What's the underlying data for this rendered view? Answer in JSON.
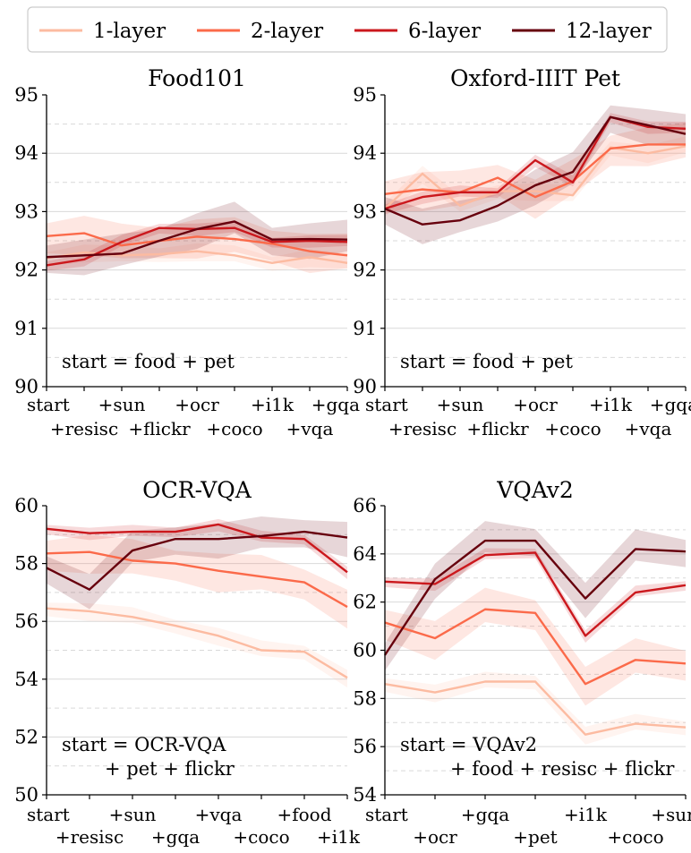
{
  "colors": {
    "series": [
      "#fcbba1",
      "#fb6a4a",
      "#cb181d",
      "#67000d"
    ],
    "grid": "#d9d9d9"
  },
  "legend": {
    "entries": [
      "1-layer",
      "2-layer",
      "6-layer",
      "12-layer"
    ],
    "placement": "top-center"
  },
  "chart_data": [
    {
      "type": "line",
      "title": "Food101",
      "ylim": [
        90,
        95
      ],
      "yticks": [
        "90",
        "91",
        "92",
        "93",
        "94",
        "95"
      ],
      "categories": [
        "start",
        "+resisc",
        "+sun",
        "+flickr",
        "+ocr",
        "+coco",
        "+i1k",
        "+vqa",
        "+gqa"
      ],
      "annotation": [
        "start = food + pet"
      ],
      "series": [
        {
          "name": "1-layer",
          "values": [
            92.2,
            92.3,
            92.25,
            92.27,
            92.32,
            92.25,
            92.12,
            92.22,
            92.12
          ]
        },
        {
          "name": "2-layer",
          "values": [
            92.58,
            92.63,
            92.42,
            92.5,
            92.57,
            92.53,
            92.45,
            92.32,
            92.25
          ]
        },
        {
          "name": "6-layer",
          "values": [
            92.08,
            92.18,
            92.48,
            92.72,
            92.7,
            92.72,
            92.48,
            92.5,
            92.48
          ]
        },
        {
          "name": "12-layer",
          "values": [
            92.22,
            92.25,
            92.28,
            92.5,
            92.7,
            92.83,
            92.52,
            92.53,
            92.52
          ]
        }
      ]
    },
    {
      "type": "line",
      "title": "Oxford-IIIT Pet",
      "ylim": [
        90,
        95
      ],
      "yticks": [
        "90",
        "91",
        "92",
        "93",
        "94",
        "95"
      ],
      "categories": [
        "start",
        "+resisc",
        "+sun",
        "+flickr",
        "+ocr",
        "+coco",
        "+i1k",
        "+vqa",
        "+gqa"
      ],
      "annotation": [
        "start = food + pet"
      ],
      "series": [
        {
          "name": "1-layer",
          "values": [
            93.05,
            93.65,
            93.1,
            93.35,
            93.35,
            93.28,
            94.1,
            94.0,
            94.12
          ]
        },
        {
          "name": "2-layer",
          "values": [
            93.3,
            93.38,
            93.33,
            93.58,
            93.25,
            93.52,
            94.08,
            94.15,
            94.15
          ]
        },
        {
          "name": "6-layer",
          "values": [
            93.05,
            93.25,
            93.33,
            93.33,
            93.88,
            93.5,
            94.62,
            94.45,
            94.42
          ]
        },
        {
          "name": "12-layer",
          "values": [
            93.05,
            92.78,
            92.85,
            93.1,
            93.45,
            93.68,
            94.62,
            94.48,
            94.33
          ]
        }
      ]
    },
    {
      "type": "line",
      "title": "OCR-VQA",
      "ylim": [
        50,
        60
      ],
      "yticks": [
        "50",
        "52",
        "54",
        "56",
        "58",
        "60"
      ],
      "categories": [
        "start",
        "+resisc",
        "+sun",
        "+gqa",
        "+vqa",
        "+coco",
        "+food",
        "+i1k"
      ],
      "annotation": [
        "start = OCR-VQA",
        "+ pet + flickr"
      ],
      "series": [
        {
          "name": "1-layer",
          "values": [
            56.45,
            56.35,
            56.15,
            55.85,
            55.5,
            55.0,
            54.95,
            54.05
          ]
        },
        {
          "name": "2-layer",
          "values": [
            58.35,
            58.4,
            58.1,
            58.0,
            57.75,
            57.55,
            57.35,
            56.5
          ]
        },
        {
          "name": "6-layer",
          "values": [
            59.2,
            59.05,
            59.1,
            59.1,
            59.35,
            58.9,
            58.85,
            57.7
          ]
        },
        {
          "name": "12-layer",
          "values": [
            57.85,
            57.1,
            58.45,
            58.85,
            58.85,
            58.95,
            59.1,
            58.9
          ]
        }
      ]
    },
    {
      "type": "line",
      "title": "VQAv2",
      "ylim": [
        54,
        66
      ],
      "yticks": [
        "54",
        "56",
        "58",
        "60",
        "62",
        "64",
        "66"
      ],
      "categories": [
        "start",
        "+ocr",
        "+gqa",
        "+pet",
        "+i1k",
        "+coco",
        "+sun"
      ],
      "annotation": [
        "start = VQAv2",
        "+ food + resisc + flickr"
      ],
      "series": [
        {
          "name": "1-layer",
          "values": [
            58.6,
            58.25,
            58.7,
            58.7,
            56.5,
            56.95,
            56.8
          ]
        },
        {
          "name": "2-layer",
          "values": [
            61.15,
            60.5,
            61.7,
            61.55,
            58.6,
            59.6,
            59.45
          ]
        },
        {
          "name": "6-layer",
          "values": [
            62.85,
            62.75,
            63.95,
            64.05,
            60.6,
            62.4,
            62.7
          ]
        },
        {
          "name": "12-layer",
          "values": [
            59.8,
            62.95,
            64.55,
            64.55,
            62.15,
            64.2,
            64.1
          ]
        }
      ]
    }
  ]
}
